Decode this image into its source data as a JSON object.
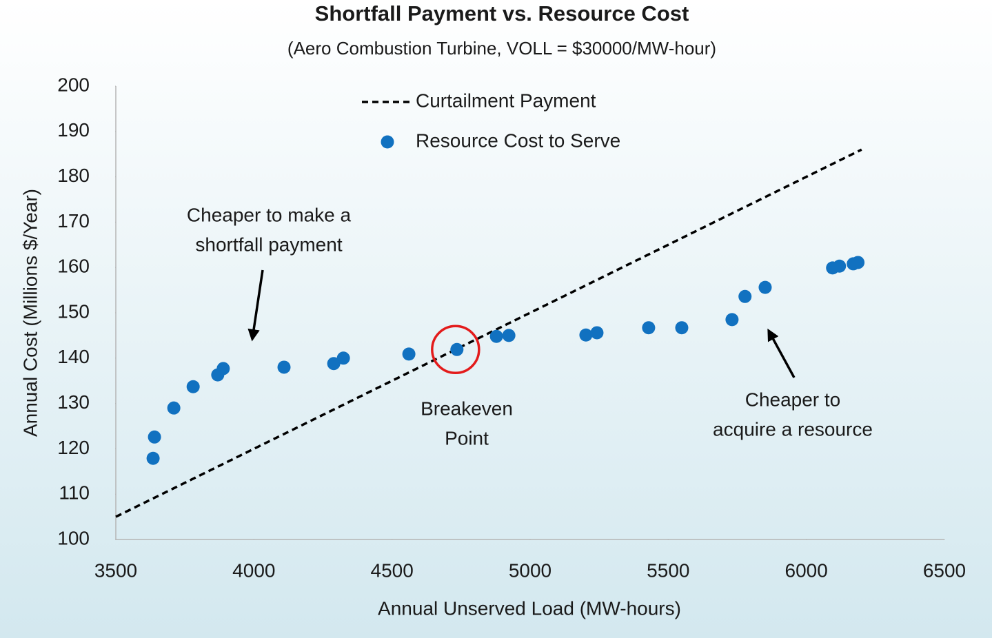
{
  "chart_data": {
    "type": "scatter",
    "title": "Shortfall Payment vs. Resource Cost",
    "subtitle": "(Aero Combustion Turbine, VOLL = $30000/MW-hour)",
    "x_label": "Annual Unserved Load (MW-hours)",
    "y_label": "Annual Cost (Millions $/Year)",
    "xlim": [
      3500,
      6500
    ],
    "xticks": [
      3500,
      4000,
      4500,
      5000,
      5500,
      6000,
      6500
    ],
    "ylim": [
      100,
      200
    ],
    "yticks": [
      100,
      110,
      120,
      130,
      140,
      150,
      160,
      170,
      180,
      190,
      200
    ],
    "grid": false,
    "legend": "top",
    "series": [
      {
        "name": "Curtailment Payment",
        "type": "line",
        "color": "#000000",
        "dashed": true,
        "x": [
          3500,
          6200
        ],
        "values": [
          105,
          186
        ]
      },
      {
        "name": "Resource Cost to Serve",
        "type": "scatter",
        "color": "#1171c0",
        "x": [
          3635,
          3640,
          3710,
          3780,
          3869,
          3889,
          4109,
          4289,
          4324,
          4561,
          4735,
          4878,
          4923,
          5202,
          5242,
          5429,
          5549,
          5731,
          5778,
          5851,
          6095,
          6120,
          6170,
          6187
        ],
        "values": [
          117.9,
          122.6,
          129.0,
          133.7,
          136.3,
          137.7,
          138.0,
          138.8,
          140.0,
          140.9,
          141.9,
          144.8,
          145.0,
          145.1,
          145.6,
          146.7,
          146.7,
          148.5,
          153.6,
          155.6,
          159.9,
          160.3,
          160.8,
          161.1
        ]
      }
    ],
    "annotations": [
      {
        "lines": [
          "Cheaper to make a",
          "shortfall payment"
        ]
      },
      {
        "lines": [
          "Breakeven",
          "Point"
        ]
      },
      {
        "lines": [
          "Cheaper to",
          "acquire a resource"
        ]
      }
    ]
  }
}
